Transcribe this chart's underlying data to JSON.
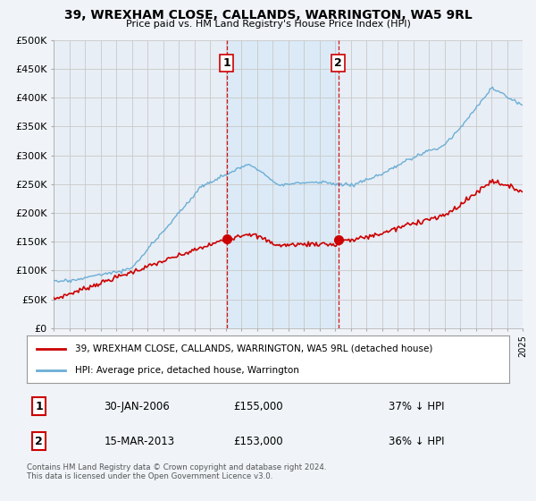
{
  "title": "39, WREXHAM CLOSE, CALLANDS, WARRINGTON, WA5 9RL",
  "subtitle": "Price paid vs. HM Land Registry's House Price Index (HPI)",
  "ylim": [
    0,
    500000
  ],
  "yticks": [
    0,
    50000,
    100000,
    150000,
    200000,
    250000,
    300000,
    350000,
    400000,
    450000,
    500000
  ],
  "ytick_labels": [
    "£0",
    "£50K",
    "£100K",
    "£150K",
    "£200K",
    "£250K",
    "£300K",
    "£350K",
    "£400K",
    "£450K",
    "£500K"
  ],
  "x_start_year": 1995,
  "x_end_year": 2025,
  "sale1_date": 2006.08,
  "sale1_price": 155000,
  "sale2_date": 2013.21,
  "sale2_price": 153000,
  "hpi_color": "#6baed6",
  "price_color": "#cc0000",
  "vline_color": "#cc0000",
  "highlight_color": "#ddeeff",
  "legend_line1": "39, WREXHAM CLOSE, CALLANDS, WARRINGTON, WA5 9RL (detached house)",
  "legend_line2": "HPI: Average price, detached house, Warrington",
  "table_row1": [
    "1",
    "30-JAN-2006",
    "£155,000",
    "37% ↓ HPI"
  ],
  "table_row2": [
    "2",
    "15-MAR-2013",
    "£153,000",
    "36% ↓ HPI"
  ],
  "footnote": "Contains HM Land Registry data © Crown copyright and database right 2024.\nThis data is licensed under the Open Government Licence v3.0.",
  "bg_color": "#f0f4f8",
  "plot_bg_color": "#e8eef5",
  "grid_color": "#cccccc",
  "white": "#ffffff"
}
